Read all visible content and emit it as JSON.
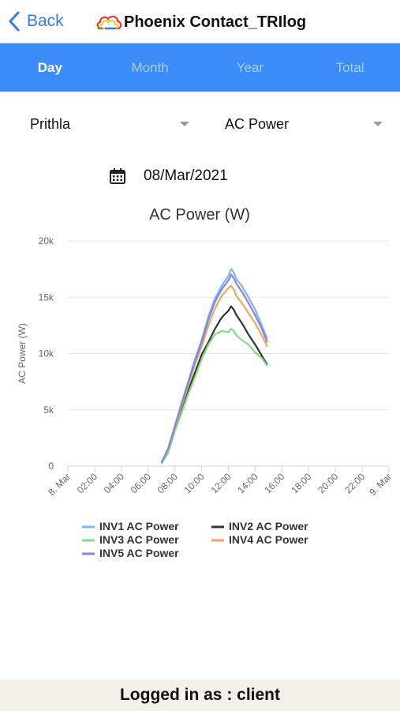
{
  "nav": {
    "back_label": "Back",
    "title": "Phoenix Contact_TRIlog"
  },
  "tabs": [
    {
      "label": "Day",
      "active": true
    },
    {
      "label": "Month",
      "active": false
    },
    {
      "label": "Year",
      "active": false
    },
    {
      "label": "Total",
      "active": false
    }
  ],
  "filters": {
    "site": "Prithla",
    "parameter": "AC Power"
  },
  "date": "08/Mar/2021",
  "icons": {
    "back": "chevron-left-icon",
    "logo": "cloud-logo-icon",
    "calendar": "calendar-icon",
    "dropdown": "caret-down-icon"
  },
  "colors": {
    "accent": "#3b8cf6",
    "tab_inactive": "#a9cdfb"
  },
  "chart_data": {
    "type": "line",
    "title": "AC Power (W)",
    "xlabel": "",
    "ylabel": "AC Power (W)",
    "ylim": [
      0,
      20000
    ],
    "yticks": [
      {
        "value": 0,
        "label": "0"
      },
      {
        "value": 5000,
        "label": "5k"
      },
      {
        "value": 10000,
        "label": "10k"
      },
      {
        "value": 15000,
        "label": "15k"
      },
      {
        "value": 20000,
        "label": "20k"
      }
    ],
    "xlim": [
      0,
      24
    ],
    "xticks": [
      {
        "value": 0,
        "label": "8. Mar"
      },
      {
        "value": 2,
        "label": "02:00"
      },
      {
        "value": 4,
        "label": "04:00"
      },
      {
        "value": 6,
        "label": "06:00"
      },
      {
        "value": 8,
        "label": "08:00"
      },
      {
        "value": 10,
        "label": "10:00"
      },
      {
        "value": 12,
        "label": "12:00"
      },
      {
        "value": 14,
        "label": "14:00"
      },
      {
        "value": 16,
        "label": "16:00"
      },
      {
        "value": 18,
        "label": "18:00"
      },
      {
        "value": 20,
        "label": "20:00"
      },
      {
        "value": 22,
        "label": "22:00"
      },
      {
        "value": 24,
        "label": "9. Mar"
      }
    ],
    "grid": true,
    "legend_position": "bottom",
    "series": [
      {
        "name": "INV1 AC Power",
        "color": "#7cb5ec",
        "x": [
          7.0,
          7.5,
          8.0,
          8.5,
          9.0,
          9.5,
          10.0,
          10.5,
          11.0,
          11.5,
          12.0,
          12.2,
          12.4,
          12.6,
          13.0,
          13.5,
          14.0,
          14.5,
          14.9
        ],
        "y": [
          300,
          1600,
          3600,
          5600,
          7500,
          9500,
          11200,
          13300,
          14900,
          16000,
          16900,
          17500,
          17200,
          16600,
          16000,
          15000,
          13900,
          12500,
          11300
        ]
      },
      {
        "name": "INV2 AC Power",
        "color": "#333333",
        "x": [
          7.0,
          7.5,
          8.0,
          8.5,
          9.0,
          9.5,
          10.0,
          10.5,
          11.0,
          11.5,
          12.0,
          12.2,
          12.4,
          12.6,
          13.0,
          13.5,
          14.0,
          14.5,
          14.9
        ],
        "y": [
          300,
          1400,
          3300,
          5000,
          6700,
          8300,
          9900,
          11000,
          12200,
          13200,
          13800,
          14200,
          13900,
          13400,
          12700,
          11700,
          10800,
          9800,
          9000
        ]
      },
      {
        "name": "INV3 AC Power",
        "color": "#7ee07e",
        "x": [
          7.0,
          7.5,
          8.0,
          8.5,
          9.0,
          9.5,
          10.0,
          10.5,
          11.0,
          11.5,
          12.0,
          12.2,
          12.4,
          12.6,
          13.0,
          13.5,
          14.0,
          14.5,
          14.9
        ],
        "y": [
          200,
          1200,
          3100,
          4700,
          6400,
          7900,
          9500,
          10800,
          11700,
          12000,
          11900,
          12200,
          12000,
          11600,
          11200,
          10800,
          10100,
          9600,
          8900
        ]
      },
      {
        "name": "INV4 AC Power",
        "color": "#f7a35c",
        "x": [
          7.0,
          7.5,
          8.0,
          8.5,
          9.0,
          9.5,
          10.0,
          10.5,
          11.0,
          11.5,
          12.0,
          12.2,
          12.4,
          12.6,
          13.0,
          13.5,
          14.0,
          14.5,
          14.9
        ],
        "y": [
          300,
          1500,
          3400,
          5300,
          7100,
          9000,
          10600,
          12500,
          14000,
          15100,
          15800,
          16000,
          15700,
          15100,
          14500,
          13600,
          12700,
          11600,
          10600
        ]
      },
      {
        "name": "INV5 AC Power",
        "color": "#8085e9",
        "x": [
          7.0,
          7.5,
          8.0,
          8.5,
          9.0,
          9.5,
          10.0,
          10.5,
          11.0,
          11.5,
          12.0,
          12.2,
          12.4,
          12.6,
          13.0,
          13.5,
          14.0,
          14.5,
          14.9
        ],
        "y": [
          300,
          1550,
          3500,
          5500,
          7400,
          9300,
          11000,
          13000,
          14600,
          15700,
          16500,
          17000,
          16700,
          16200,
          15500,
          14500,
          13400,
          12200,
          11000
        ]
      }
    ]
  },
  "footer": {
    "text": "Logged in as : client"
  }
}
